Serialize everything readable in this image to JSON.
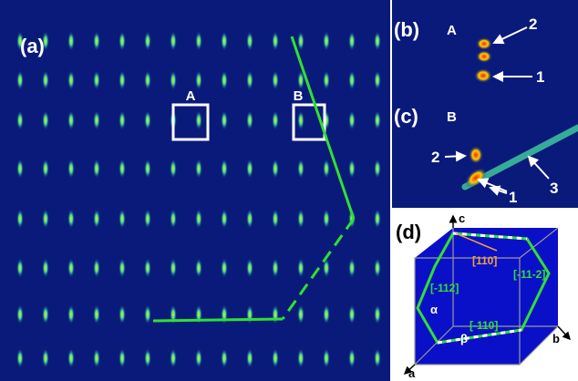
{
  "panels": {
    "a": {
      "label": "(a)",
      "box_a": "A",
      "box_b": "B"
    },
    "b": {
      "label": "(b)",
      "title": "A",
      "peaks": [
        "2",
        "1"
      ]
    },
    "c": {
      "label": "(c)",
      "title": "B",
      "peaks": [
        "2",
        "1",
        "3"
      ]
    },
    "d": {
      "label": "(d)",
      "directions": [
        "[110]",
        "[-11-2]",
        "[-112]",
        "[-110]"
      ],
      "angles": [
        "α",
        "β"
      ],
      "axes": [
        "c",
        "b",
        "a"
      ]
    }
  }
}
